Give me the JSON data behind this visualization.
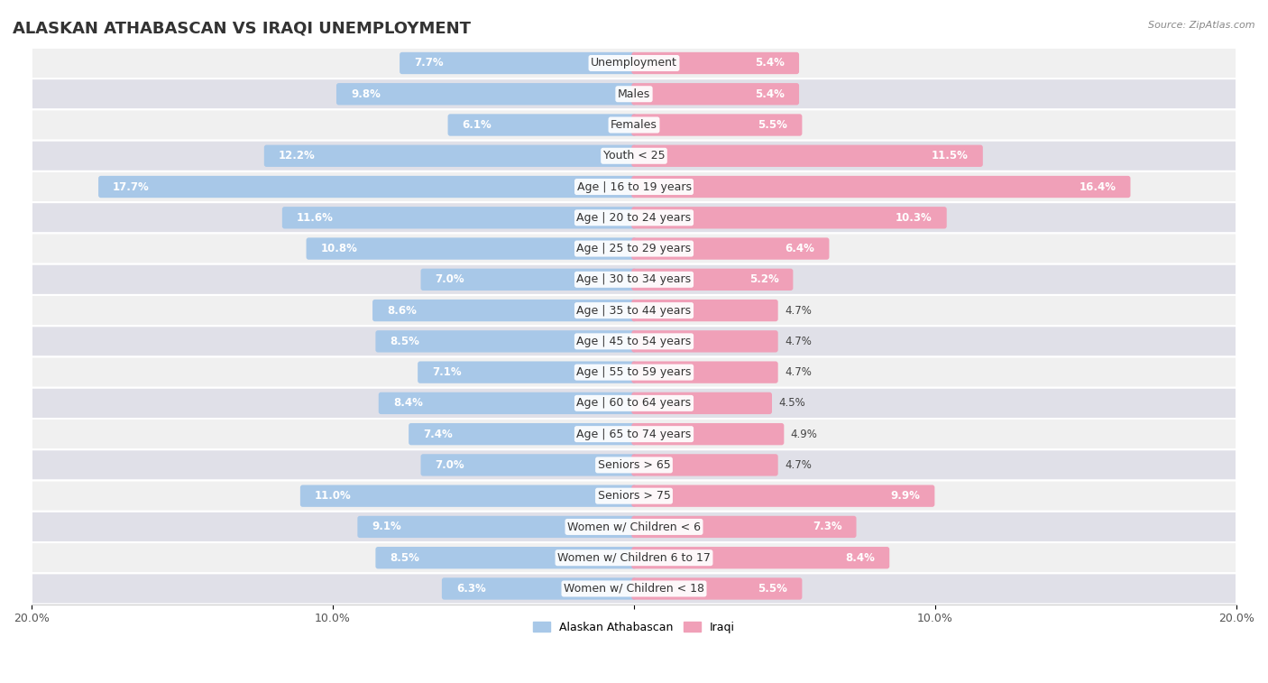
{
  "title": "ALASKAN ATHABASCAN VS IRAQI UNEMPLOYMENT",
  "source": "Source: ZipAtlas.com",
  "categories": [
    "Unemployment",
    "Males",
    "Females",
    "Youth < 25",
    "Age | 16 to 19 years",
    "Age | 20 to 24 years",
    "Age | 25 to 29 years",
    "Age | 30 to 34 years",
    "Age | 35 to 44 years",
    "Age | 45 to 54 years",
    "Age | 55 to 59 years",
    "Age | 60 to 64 years",
    "Age | 65 to 74 years",
    "Seniors > 65",
    "Seniors > 75",
    "Women w/ Children < 6",
    "Women w/ Children 6 to 17",
    "Women w/ Children < 18"
  ],
  "alaskan_values": [
    7.7,
    9.8,
    6.1,
    12.2,
    17.7,
    11.6,
    10.8,
    7.0,
    8.6,
    8.5,
    7.1,
    8.4,
    7.4,
    7.0,
    11.0,
    9.1,
    8.5,
    6.3
  ],
  "iraqi_values": [
    5.4,
    5.4,
    5.5,
    11.5,
    16.4,
    10.3,
    6.4,
    5.2,
    4.7,
    4.7,
    4.7,
    4.5,
    4.9,
    4.7,
    9.9,
    7.3,
    8.4,
    5.5
  ],
  "alaskan_color": "#a8c8e8",
  "iraqi_color": "#f0a0b8",
  "row_light": "#f0f0f0",
  "row_dark": "#e0e0e8",
  "xlim": 20.0,
  "legend_label_alaskan": "Alaskan Athabascan",
  "legend_label_iraqi": "Iraqi",
  "title_fontsize": 13,
  "cat_fontsize": 9,
  "value_fontsize": 8.5,
  "axis_fontsize": 9
}
